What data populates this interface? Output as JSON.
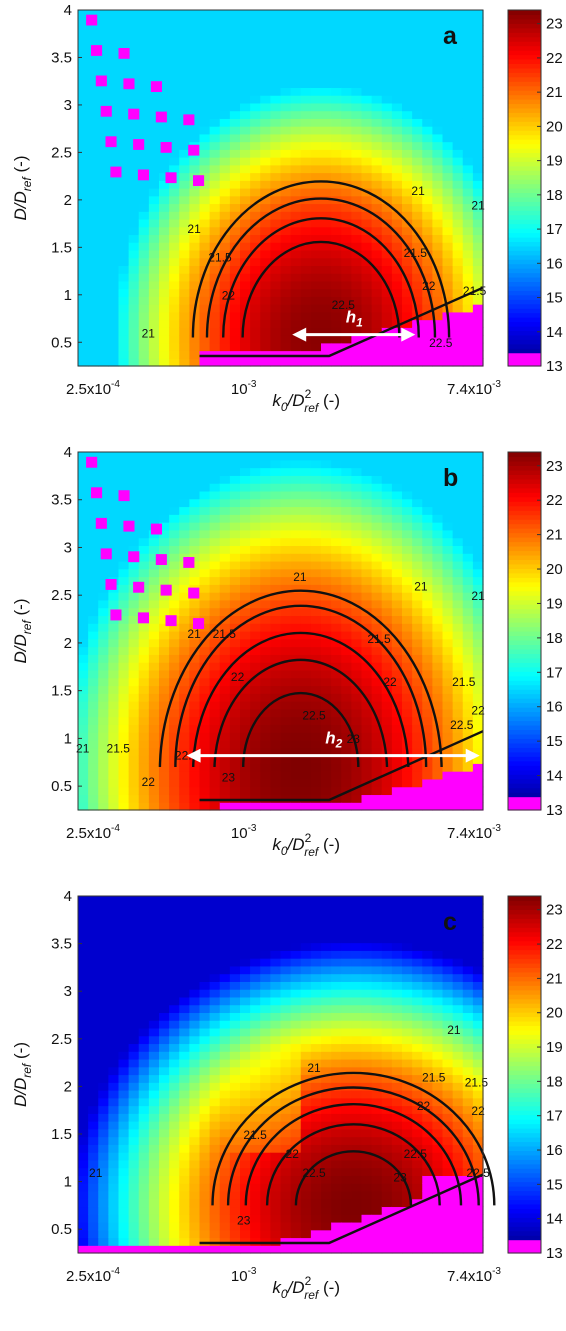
{
  "chart_data": [
    {
      "type": "heatmap",
      "panel_label": "a",
      "xlabel": {
        "base": "k",
        "base_sub": "0",
        "sep": "/D",
        "sup": "2",
        "sub": "ref",
        "unit": " (-)"
      },
      "ylabel": {
        "base": "D/D",
        "sub": "ref",
        "unit": " (-)"
      },
      "x_scale": "log",
      "xlim": [
        0.00025,
        0.0074
      ],
      "x_ticks": [
        {
          "value": 0.00025,
          "mant": "2.5x10",
          "exp": "-4"
        },
        {
          "value": 0.001,
          "mant": "10",
          "exp": "-3"
        },
        {
          "value": 0.0074,
          "mant": "7.4x10",
          "exp": "-3"
        }
      ],
      "ylim": [
        0.25,
        4
      ],
      "y_ticks": [
        "0.5",
        "1",
        "1.5",
        "2",
        "2.5",
        "3",
        "3.5",
        "4"
      ],
      "colorbar": {
        "min": 13,
        "max": 23.4,
        "ticks": [
          "13",
          "14",
          "15",
          "16",
          "17",
          "18",
          "19",
          "20",
          "21",
          "22",
          "23"
        ],
        "colormap": "jet (magenta = 13)"
      },
      "peak": {
        "x": 0.0018,
        "y": 0.5,
        "value": 23.4
      },
      "contour_levels": [
        "21",
        "21.5",
        "22",
        "22.5"
      ],
      "contour_labels": [
        {
          "text": "21",
          "x": 0.00045,
          "y": 0.55
        },
        {
          "text": "21",
          "x": 0.00066,
          "y": 1.65
        },
        {
          "text": "21",
          "x": 0.0043,
          "y": 2.05
        },
        {
          "text": "21",
          "x": 0.0071,
          "y": 1.9
        },
        {
          "text": "21.5",
          "x": 0.00082,
          "y": 1.35
        },
        {
          "text": "21.5",
          "x": 0.0042,
          "y": 1.4
        },
        {
          "text": "21.5",
          "x": 0.0069,
          "y": 1.0
        },
        {
          "text": "22",
          "x": 0.00088,
          "y": 0.95
        },
        {
          "text": "22",
          "x": 0.0047,
          "y": 1.05
        },
        {
          "text": "22.5",
          "x": 0.0023,
          "y": 0.85
        },
        {
          "text": "22.5",
          "x": 0.0052,
          "y": 0.45
        }
      ],
      "annotation": {
        "label": "h",
        "label_sub": "1",
        "x_from": 0.0015,
        "x_to": 0.0042,
        "y": 0.58
      }
    },
    {
      "type": "heatmap",
      "panel_label": "b",
      "xlabel": {
        "base": "k",
        "base_sub": "0",
        "sep": "/D",
        "sup": "2",
        "sub": "ref",
        "unit": " (-)"
      },
      "ylabel": {
        "base": "D/D",
        "sub": "ref",
        "unit": " (-)"
      },
      "x_scale": "log",
      "xlim": [
        0.00025,
        0.0074
      ],
      "x_ticks": [
        {
          "value": 0.00025,
          "mant": "2.5x10",
          "exp": "-4"
        },
        {
          "value": 0.001,
          "mant": "10",
          "exp": "-3"
        },
        {
          "value": 0.0074,
          "mant": "7.4x10",
          "exp": "-3"
        }
      ],
      "ylim": [
        0.25,
        4
      ],
      "y_ticks": [
        "0.5",
        "1",
        "1.5",
        "2",
        "2.5",
        "3",
        "3.5",
        "4"
      ],
      "colorbar": {
        "min": 13,
        "max": 23.4,
        "ticks": [
          "13",
          "14",
          "15",
          "16",
          "17",
          "18",
          "19",
          "20",
          "21",
          "22",
          "23"
        ],
        "colormap": "jet (magenta = 13)"
      },
      "peak": {
        "x": 0.0018,
        "y": 0.65,
        "value": 23.4
      },
      "contour_levels": [
        "21",
        "21.5",
        "22",
        "22.5",
        "23"
      ],
      "contour_labels": [
        {
          "text": "21",
          "x": 0.00026,
          "y": 0.85
        },
        {
          "text": "21",
          "x": 0.00066,
          "y": 2.05
        },
        {
          "text": "21",
          "x": 0.0016,
          "y": 2.65
        },
        {
          "text": "21",
          "x": 0.0044,
          "y": 2.55
        },
        {
          "text": "21",
          "x": 0.0071,
          "y": 2.45
        },
        {
          "text": "21.5",
          "x": 0.00035,
          "y": 0.85
        },
        {
          "text": "21.5",
          "x": 0.00085,
          "y": 2.05
        },
        {
          "text": "21.5",
          "x": 0.0031,
          "y": 2.0
        },
        {
          "text": "21.5",
          "x": 0.0063,
          "y": 1.55
        },
        {
          "text": "22",
          "x": 0.00045,
          "y": 0.5
        },
        {
          "text": "22",
          "x": 0.00095,
          "y": 1.6
        },
        {
          "text": "22",
          "x": 0.0034,
          "y": 1.55
        },
        {
          "text": "22",
          "x": 0.0071,
          "y": 1.25
        },
        {
          "text": "22.5",
          "x": 0.00062,
          "y": 0.78
        },
        {
          "text": "22.5",
          "x": 0.0018,
          "y": 1.2
        },
        {
          "text": "22.5",
          "x": 0.0062,
          "y": 1.1
        },
        {
          "text": "23",
          "x": 0.00088,
          "y": 0.55
        },
        {
          "text": "23",
          "x": 0.0025,
          "y": 0.95
        }
      ],
      "annotation": {
        "label": "h",
        "label_sub": "2",
        "x_from": 0.00062,
        "x_to": 0.0072,
        "y": 0.82
      }
    },
    {
      "type": "heatmap",
      "panel_label": "c",
      "xlabel": {
        "base": "k",
        "base_sub": "0",
        "sep": "/D",
        "sup": "2",
        "sub": "ref",
        "unit": " (-)"
      },
      "ylabel": {
        "base": "D/D",
        "sub": "ref",
        "unit": " (-)"
      },
      "x_scale": "log",
      "xlim": [
        0.00025,
        0.0074
      ],
      "x_ticks": [
        {
          "value": 0.00025,
          "mant": "2.5x10",
          "exp": "-4"
        },
        {
          "value": 0.001,
          "mant": "10",
          "exp": "-3"
        },
        {
          "value": 0.0074,
          "mant": "7.4x10",
          "exp": "-3"
        }
      ],
      "ylim": [
        0.25,
        4
      ],
      "y_ticks": [
        "0.5",
        "1",
        "1.5",
        "2",
        "2.5",
        "3",
        "3.5",
        "4"
      ],
      "colorbar": {
        "min": 13,
        "max": 23.4,
        "ticks": [
          "13",
          "14",
          "15",
          "16",
          "17",
          "18",
          "19",
          "20",
          "21",
          "22",
          "23"
        ],
        "colormap": "jet (magenta = 13)"
      },
      "peak": {
        "x": 0.0025,
        "y": 0.65,
        "value": 23.4
      },
      "contour_levels": [
        "21",
        "21.5",
        "22",
        "22.5",
        "23"
      ],
      "contour_labels": [
        {
          "text": "21",
          "x": 0.00029,
          "y": 1.05
        },
        {
          "text": "21",
          "x": 0.0018,
          "y": 2.15
        },
        {
          "text": "21",
          "x": 0.0058,
          "y": 2.55
        },
        {
          "text": "21.5",
          "x": 0.0011,
          "y": 1.45
        },
        {
          "text": "21.5",
          "x": 0.0049,
          "y": 2.05
        },
        {
          "text": "21.5",
          "x": 0.007,
          "y": 2.0
        },
        {
          "text": "22",
          "x": 0.0015,
          "y": 1.25
        },
        {
          "text": "22",
          "x": 0.0045,
          "y": 1.75
        },
        {
          "text": "22",
          "x": 0.0071,
          "y": 1.7
        },
        {
          "text": "22.5",
          "x": 0.0018,
          "y": 1.05
        },
        {
          "text": "22.5",
          "x": 0.0042,
          "y": 1.25
        },
        {
          "text": "22.5",
          "x": 0.0071,
          "y": 1.05
        },
        {
          "text": "23",
          "x": 0.001,
          "y": 0.55
        },
        {
          "text": "23",
          "x": 0.0037,
          "y": 1.0
        }
      ]
    }
  ]
}
